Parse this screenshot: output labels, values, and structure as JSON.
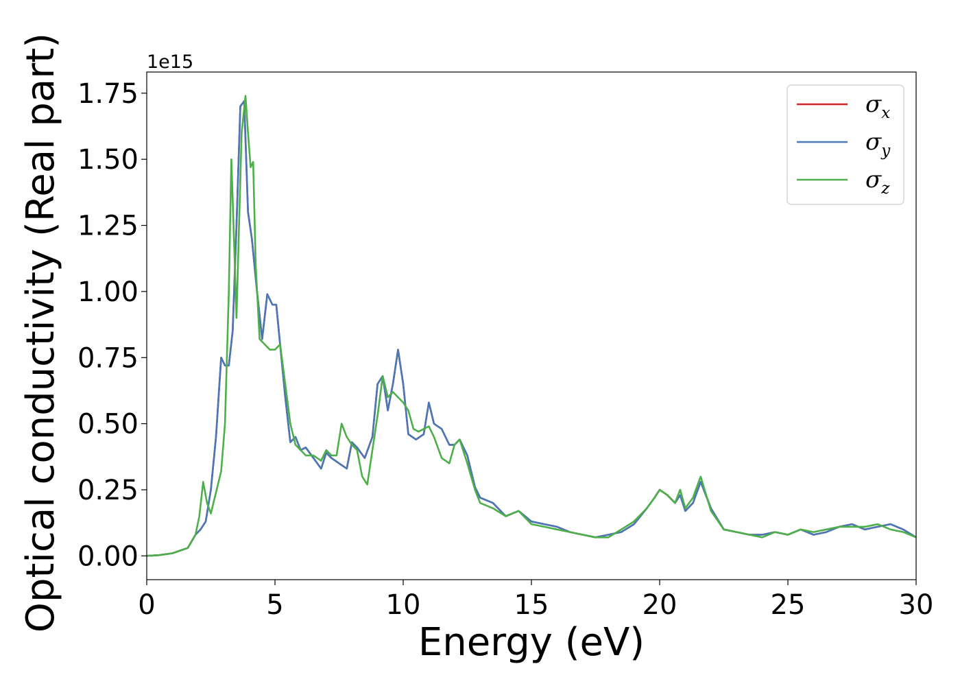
{
  "chart_data": {
    "type": "line",
    "xlabel": "Energy (eV)",
    "ylabel": "Optical conductivity (Real part)",
    "y_offset_text": "1e15",
    "xlim": [
      0,
      30
    ],
    "ylim": [
      -0.09,
      1.83
    ],
    "xticks": [
      0,
      5,
      10,
      15,
      20,
      25,
      30
    ],
    "xtick_labels": [
      "0",
      "5",
      "10",
      "15",
      "20",
      "25",
      "30"
    ],
    "yticks": [
      0,
      0.25,
      0.5,
      0.75,
      1.0,
      1.25,
      1.5,
      1.75
    ],
    "ytick_labels": [
      "0.00",
      "0.25",
      "0.50",
      "0.75",
      "1.00",
      "1.25",
      "1.50",
      "1.75"
    ],
    "grid": false,
    "legend_position": "top-right",
    "series": [
      {
        "name": "σx",
        "legend_symbol": "σ",
        "legend_sub": "x",
        "color": "#d62728",
        "x": [
          0,
          0.5,
          1.0,
          1.3,
          1.6,
          1.9,
          2.1,
          2.3,
          2.5,
          2.7,
          2.9,
          3.05,
          3.2,
          3.35,
          3.5,
          3.65,
          3.8,
          3.95,
          4.1,
          4.3,
          4.5,
          4.7,
          4.9,
          5.05,
          5.2,
          5.4,
          5.6,
          5.8,
          6.0,
          6.2,
          6.5,
          6.8,
          7.0,
          7.2,
          7.5,
          7.8,
          8.0,
          8.2,
          8.5,
          8.8,
          9.0,
          9.2,
          9.4,
          9.6,
          9.8,
          10.0,
          10.2,
          10.5,
          10.8,
          11.0,
          11.2,
          11.5,
          11.8,
          12.0,
          12.2,
          12.5,
          12.8,
          13.0,
          13.5,
          14.0,
          14.5,
          15.0,
          15.5,
          16.0,
          16.5,
          17.0,
          17.5,
          18.0,
          18.5,
          19.0,
          19.5,
          19.8,
          20.0,
          20.3,
          20.6,
          20.8,
          21.0,
          21.3,
          21.6,
          22.0,
          22.5,
          23.0,
          23.5,
          24.0,
          24.5,
          25.0,
          25.5,
          26.0,
          26.5,
          27.0,
          27.5,
          28.0,
          28.5,
          29.0,
          29.5,
          30.0
        ],
        "y": [
          0,
          0.003,
          0.01,
          0.02,
          0.03,
          0.08,
          0.1,
          0.13,
          0.25,
          0.45,
          0.75,
          0.72,
          0.72,
          0.85,
          1.25,
          1.7,
          1.72,
          1.3,
          1.2,
          1.0,
          0.82,
          0.99,
          0.95,
          0.95,
          0.8,
          0.6,
          0.43,
          0.45,
          0.4,
          0.41,
          0.37,
          0.33,
          0.39,
          0.37,
          0.35,
          0.33,
          0.43,
          0.41,
          0.37,
          0.45,
          0.65,
          0.68,
          0.55,
          0.65,
          0.78,
          0.65,
          0.46,
          0.44,
          0.46,
          0.58,
          0.5,
          0.48,
          0.42,
          0.42,
          0.44,
          0.38,
          0.26,
          0.22,
          0.2,
          0.15,
          0.17,
          0.13,
          0.12,
          0.11,
          0.09,
          0.08,
          0.07,
          0.08,
          0.09,
          0.12,
          0.18,
          0.22,
          0.25,
          0.23,
          0.2,
          0.23,
          0.17,
          0.2,
          0.28,
          0.18,
          0.1,
          0.09,
          0.08,
          0.08,
          0.09,
          0.08,
          0.1,
          0.08,
          0.09,
          0.11,
          0.12,
          0.1,
          0.11,
          0.12,
          0.1,
          0.07
        ]
      },
      {
        "name": "σy",
        "legend_symbol": "σ",
        "legend_sub": "y",
        "color": "#4878b8",
        "x": [
          0,
          0.5,
          1.0,
          1.3,
          1.6,
          1.9,
          2.1,
          2.3,
          2.5,
          2.7,
          2.9,
          3.05,
          3.2,
          3.35,
          3.5,
          3.65,
          3.8,
          3.95,
          4.1,
          4.3,
          4.5,
          4.7,
          4.9,
          5.05,
          5.2,
          5.4,
          5.6,
          5.8,
          6.0,
          6.2,
          6.5,
          6.8,
          7.0,
          7.2,
          7.5,
          7.8,
          8.0,
          8.2,
          8.5,
          8.8,
          9.0,
          9.2,
          9.4,
          9.6,
          9.8,
          10.0,
          10.2,
          10.5,
          10.8,
          11.0,
          11.2,
          11.5,
          11.8,
          12.0,
          12.2,
          12.5,
          12.8,
          13.0,
          13.5,
          14.0,
          14.5,
          15.0,
          15.5,
          16.0,
          16.5,
          17.0,
          17.5,
          18.0,
          18.5,
          19.0,
          19.5,
          19.8,
          20.0,
          20.3,
          20.6,
          20.8,
          21.0,
          21.3,
          21.6,
          22.0,
          22.5,
          23.0,
          23.5,
          24.0,
          24.5,
          25.0,
          25.5,
          26.0,
          26.5,
          27.0,
          27.5,
          28.0,
          28.5,
          29.0,
          29.5,
          30.0
        ],
        "y": [
          0,
          0.003,
          0.01,
          0.02,
          0.03,
          0.08,
          0.1,
          0.13,
          0.25,
          0.45,
          0.75,
          0.72,
          0.72,
          0.85,
          1.25,
          1.7,
          1.72,
          1.3,
          1.2,
          1.0,
          0.82,
          0.99,
          0.95,
          0.95,
          0.8,
          0.6,
          0.43,
          0.45,
          0.4,
          0.41,
          0.37,
          0.33,
          0.39,
          0.37,
          0.35,
          0.33,
          0.43,
          0.41,
          0.37,
          0.45,
          0.65,
          0.68,
          0.55,
          0.65,
          0.78,
          0.65,
          0.46,
          0.44,
          0.46,
          0.58,
          0.5,
          0.48,
          0.42,
          0.42,
          0.44,
          0.38,
          0.26,
          0.22,
          0.2,
          0.15,
          0.17,
          0.13,
          0.12,
          0.11,
          0.09,
          0.08,
          0.07,
          0.08,
          0.09,
          0.12,
          0.18,
          0.22,
          0.25,
          0.23,
          0.2,
          0.23,
          0.17,
          0.2,
          0.28,
          0.18,
          0.1,
          0.09,
          0.08,
          0.08,
          0.09,
          0.08,
          0.1,
          0.08,
          0.09,
          0.11,
          0.12,
          0.1,
          0.11,
          0.12,
          0.1,
          0.07
        ]
      },
      {
        "name": "σz",
        "legend_symbol": "σ",
        "legend_sub": "z",
        "color": "#4daf4a",
        "x": [
          0,
          0.5,
          1.0,
          1.3,
          1.6,
          1.9,
          2.05,
          2.2,
          2.35,
          2.5,
          2.7,
          2.9,
          3.05,
          3.2,
          3.3,
          3.4,
          3.5,
          3.6,
          3.7,
          3.85,
          3.95,
          4.05,
          4.15,
          4.25,
          4.4,
          4.6,
          4.8,
          5.0,
          5.2,
          5.4,
          5.6,
          5.8,
          6.0,
          6.2,
          6.5,
          6.8,
          7.0,
          7.2,
          7.4,
          7.6,
          7.8,
          8.0,
          8.2,
          8.4,
          8.6,
          8.8,
          9.0,
          9.2,
          9.4,
          9.6,
          9.8,
          10.0,
          10.2,
          10.4,
          10.6,
          10.8,
          11.0,
          11.2,
          11.5,
          11.8,
          12.0,
          12.2,
          12.5,
          12.8,
          13.0,
          13.5,
          14.0,
          14.5,
          15.0,
          15.5,
          16.0,
          16.5,
          17.0,
          17.5,
          18.0,
          18.5,
          19.0,
          19.5,
          19.8,
          20.0,
          20.3,
          20.6,
          20.8,
          21.0,
          21.3,
          21.6,
          22.0,
          22.5,
          23.0,
          23.5,
          24.0,
          24.5,
          25.0,
          25.5,
          26.0,
          26.5,
          27.0,
          27.5,
          28.0,
          28.5,
          29.0,
          29.5,
          30.0
        ],
        "y": [
          0,
          0.003,
          0.01,
          0.02,
          0.03,
          0.08,
          0.15,
          0.28,
          0.2,
          0.16,
          0.24,
          0.32,
          0.5,
          1.0,
          1.5,
          1.2,
          0.9,
          1.25,
          1.6,
          1.74,
          1.6,
          1.47,
          1.49,
          1.1,
          0.82,
          0.8,
          0.78,
          0.78,
          0.8,
          0.65,
          0.5,
          0.42,
          0.4,
          0.38,
          0.38,
          0.36,
          0.4,
          0.38,
          0.38,
          0.5,
          0.45,
          0.42,
          0.4,
          0.3,
          0.27,
          0.4,
          0.53,
          0.68,
          0.6,
          0.62,
          0.6,
          0.58,
          0.55,
          0.48,
          0.47,
          0.48,
          0.49,
          0.45,
          0.37,
          0.35,
          0.42,
          0.44,
          0.35,
          0.25,
          0.2,
          0.18,
          0.15,
          0.17,
          0.12,
          0.11,
          0.1,
          0.09,
          0.08,
          0.07,
          0.07,
          0.1,
          0.13,
          0.18,
          0.22,
          0.25,
          0.23,
          0.2,
          0.25,
          0.18,
          0.22,
          0.3,
          0.17,
          0.1,
          0.09,
          0.08,
          0.07,
          0.09,
          0.08,
          0.1,
          0.09,
          0.1,
          0.11,
          0.11,
          0.11,
          0.12,
          0.1,
          0.09,
          0.07
        ]
      }
    ]
  }
}
